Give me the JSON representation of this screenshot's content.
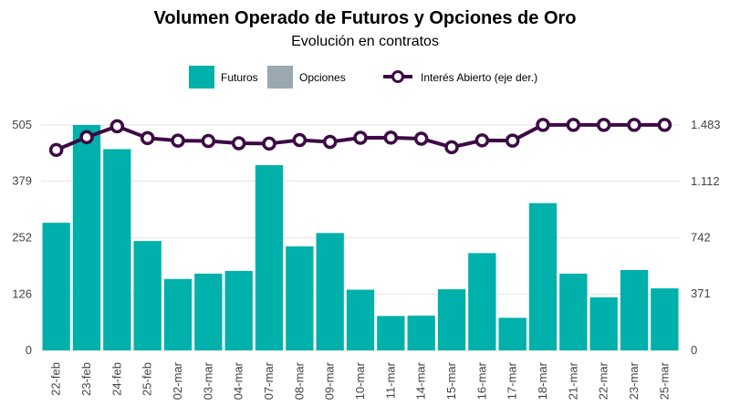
{
  "chart_data": {
    "type": "bar",
    "title": "Volumen Operado de Futuros y Opciones de Oro",
    "subtitle": "Evolución en contratos",
    "categories": [
      "22-feb",
      "23-feb",
      "24-feb",
      "25-feb",
      "02-mar",
      "03-mar",
      "04-mar",
      "07-mar",
      "08-mar",
      "09-mar",
      "10-mar",
      "11-mar",
      "14-mar",
      "15-mar",
      "16-mar",
      "17-mar",
      "18-mar",
      "21-mar",
      "22-mar",
      "23-mar",
      "25-mar"
    ],
    "series": [
      {
        "name": "Futuros",
        "axis": "left",
        "kind": "bar",
        "color": "#00b0aa",
        "values": [
          286,
          505,
          451,
          245,
          160,
          172,
          178,
          415,
          233,
          263,
          136,
          77,
          78,
          137,
          218,
          73,
          330,
          172,
          119,
          180,
          139
        ]
      },
      {
        "name": "Opciones",
        "axis": "left",
        "kind": "bar",
        "color": "#9aa8b0",
        "values": [
          0,
          0,
          0,
          0,
          0,
          0,
          0,
          0,
          0,
          0,
          0,
          0,
          0,
          0,
          0,
          0,
          0,
          0,
          0,
          0,
          0
        ]
      },
      {
        "name": "Interés Abierto (eje der.)",
        "axis": "right",
        "kind": "line",
        "color": "#3d0a45",
        "values": [
          1319,
          1403,
          1475,
          1397,
          1380,
          1378,
          1363,
          1361,
          1384,
          1372,
          1399,
          1400,
          1393,
          1337,
          1382,
          1380,
          1484,
          1484,
          1484,
          1484,
          1484
        ]
      }
    ],
    "y_left": {
      "ticks": [
        "0",
        "126",
        "252",
        "379",
        "505"
      ],
      "tick_values": [
        0,
        126,
        252,
        379,
        505
      ],
      "ylim": [
        0,
        505
      ]
    },
    "y_right": {
      "ticks": [
        "0",
        "371",
        "742",
        "1.112",
        "1.483"
      ],
      "tick_values": [
        0,
        371,
        742,
        1112,
        1483
      ],
      "ylim": [
        0,
        1483
      ]
    },
    "legend_position": "top-center",
    "grid": true
  }
}
